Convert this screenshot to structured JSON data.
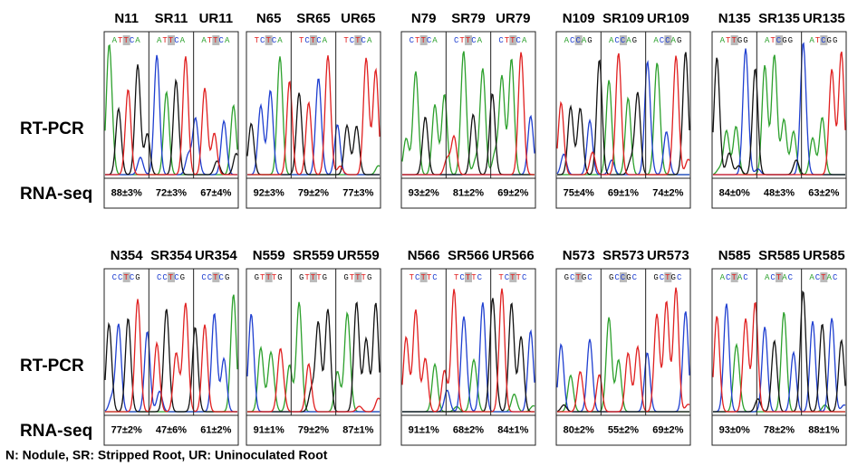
{
  "rows": [
    {
      "rt_pcr_label": "RT-PCR",
      "rna_seq_label": "RNA-seq",
      "groups": [
        {
          "samples": [
            {
              "name": "N11",
              "sequence": [
                "A",
                "T",
                "T",
                "C",
                "A"
              ],
              "rna_seq": "88±3%"
            },
            {
              "name": "SR11",
              "sequence": [
                "A",
                "T",
                "T",
                "C",
                "A"
              ],
              "rna_seq": "72±3%"
            },
            {
              "name": "UR11",
              "sequence": [
                "A",
                "T",
                "T",
                "C",
                "A"
              ],
              "rna_seq": "67±4%"
            }
          ]
        },
        {
          "samples": [
            {
              "name": "N65",
              "sequence": [
                "T",
                "C",
                "T",
                "C",
                "A"
              ],
              "rna_seq": "92±3%"
            },
            {
              "name": "SR65",
              "sequence": [
                "T",
                "C",
                "T",
                "C",
                "A"
              ],
              "rna_seq": "79±2%"
            },
            {
              "name": "UR65",
              "sequence": [
                "T",
                "C",
                "T",
                "C",
                "A"
              ],
              "rna_seq": "77±3%"
            }
          ]
        },
        {
          "samples": [
            {
              "name": "N79",
              "sequence": [
                "C",
                "T",
                "T",
                "C",
                "A"
              ],
              "rna_seq": "93±2%"
            },
            {
              "name": "SR79",
              "sequence": [
                "C",
                "T",
                "T",
                "C",
                "A"
              ],
              "rna_seq": "81±2%"
            },
            {
              "name": "UR79",
              "sequence": [
                "C",
                "T",
                "T",
                "C",
                "A"
              ],
              "rna_seq": "69±2%"
            }
          ]
        },
        {
          "samples": [
            {
              "name": "N109",
              "sequence": [
                "A",
                "C",
                "C",
                "A",
                "G"
              ],
              "rna_seq": "75±4%"
            },
            {
              "name": "SR109",
              "sequence": [
                "A",
                "C",
                "C",
                "A",
                "G"
              ],
              "rna_seq": "69±1%"
            },
            {
              "name": "UR109",
              "sequence": [
                "A",
                "C",
                "C",
                "A",
                "G"
              ],
              "rna_seq": "74±2%"
            }
          ]
        },
        {
          "samples": [
            {
              "name": "N135",
              "sequence": [
                "A",
                "T",
                "T",
                "G",
                "G"
              ],
              "rna_seq": "84±0%"
            },
            {
              "name": "SR135",
              "sequence": [
                "A",
                "T",
                "C",
                "G",
                "G"
              ],
              "rna_seq": "48±3%"
            },
            {
              "name": "UR135",
              "sequence": [
                "A",
                "T",
                "C",
                "G",
                "G"
              ],
              "rna_seq": "63±2%"
            }
          ]
        }
      ]
    },
    {
      "rt_pcr_label": "RT-PCR",
      "rna_seq_label": "RNA-seq",
      "groups": [
        {
          "samples": [
            {
              "name": "N354",
              "sequence": [
                "C",
                "C",
                "T",
                "C",
                "G"
              ],
              "rna_seq": "77±2%"
            },
            {
              "name": "SR354",
              "sequence": [
                "C",
                "C",
                "T",
                "C",
                "G"
              ],
              "rna_seq": "47±6%"
            },
            {
              "name": "UR354",
              "sequence": [
                "C",
                "C",
                "T",
                "C",
                "G"
              ],
              "rna_seq": "61±2%"
            }
          ]
        },
        {
          "samples": [
            {
              "name": "N559",
              "sequence": [
                "G",
                "T",
                "T",
                "T",
                "G"
              ],
              "rna_seq": "91±1%"
            },
            {
              "name": "SR559",
              "sequence": [
                "G",
                "T",
                "T",
                "T",
                "G"
              ],
              "rna_seq": "79±2%"
            },
            {
              "name": "UR559",
              "sequence": [
                "G",
                "T",
                "T",
                "T",
                "G"
              ],
              "rna_seq": "87±1%"
            }
          ]
        },
        {
          "samples": [
            {
              "name": "N566",
              "sequence": [
                "T",
                "C",
                "T",
                "T",
                "C"
              ],
              "rna_seq": "91±1%"
            },
            {
              "name": "SR566",
              "sequence": [
                "T",
                "C",
                "T",
                "T",
                "C"
              ],
              "rna_seq": "68±2%"
            },
            {
              "name": "UR566",
              "sequence": [
                "T",
                "C",
                "T",
                "T",
                "C"
              ],
              "rna_seq": "84±1%"
            }
          ]
        },
        {
          "samples": [
            {
              "name": "N573",
              "sequence": [
                "G",
                "C",
                "T",
                "G",
                "C"
              ],
              "rna_seq": "80±2%"
            },
            {
              "name": "SR573",
              "sequence": [
                "G",
                "C",
                "C",
                "G",
                "C"
              ],
              "rna_seq": "55±2%"
            },
            {
              "name": "UR573",
              "sequence": [
                "G",
                "C",
                "T",
                "G",
                "C"
              ],
              "rna_seq": "69±2%"
            }
          ]
        },
        {
          "samples": [
            {
              "name": "N585",
              "sequence": [
                "A",
                "C",
                "T",
                "A",
                "C"
              ],
              "rna_seq": "93±0%"
            },
            {
              "name": "SR585",
              "sequence": [
                "A",
                "C",
                "T",
                "A",
                "C"
              ],
              "rna_seq": "78±2%"
            },
            {
              "name": "UR585",
              "sequence": [
                "A",
                "C",
                "T",
                "A",
                "C"
              ],
              "rna_seq": "88±1%"
            }
          ]
        }
      ]
    }
  ],
  "legend": "N: Nodule, SR: Stripped Root, UR: Uninoculated Root"
}
